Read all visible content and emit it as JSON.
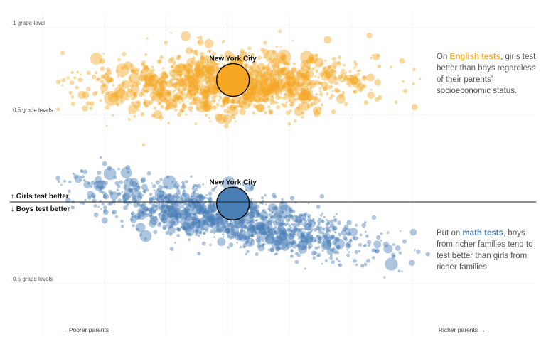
{
  "chart_data": {
    "type": "scatter",
    "y_ticks": [
      {
        "label": "1 grade level",
        "value": 1.0,
        "panel": "english"
      },
      {
        "label": "0.5 grade levels",
        "value": 0.5,
        "panel": "english"
      },
      {
        "label": "0.5 grade levels",
        "value": -0.5,
        "panel": "math"
      }
    ],
    "zero_line": {
      "top_label": "↑ Girls test better",
      "bottom_label": "↓ Boys test better"
    },
    "x_axis": {
      "left_label": "← Poorer parents",
      "right_label": "Richer parents →",
      "min": 0,
      "max": 1
    },
    "series": [
      {
        "key": "english",
        "color": "#f5a623",
        "highlight": {
          "label": "New York City",
          "x": 0.46,
          "y": 0.7
        },
        "trend": {
          "y_at_poor": 0.68,
          "y_at_rich": 0.68
        },
        "spread": 0.09,
        "count": 1300
      },
      {
        "key": "math",
        "color": "#4a7fb5",
        "highlight": {
          "label": "New York City",
          "x": 0.46,
          "y": -0.01
        },
        "trend": {
          "y_at_poor": 0.1,
          "y_at_rich": -0.33
        },
        "spread": 0.08,
        "count": 1300
      }
    ]
  },
  "annotations": {
    "english": {
      "pre": "On ",
      "highlight": "English tests",
      "post": ", girls test better than boys regardless of their parents’ socioeconomic status."
    },
    "math": {
      "pre": "But on ",
      "highlight": "math tests",
      "post": ", boys from richer families tend to test better than girls from richer families."
    }
  }
}
